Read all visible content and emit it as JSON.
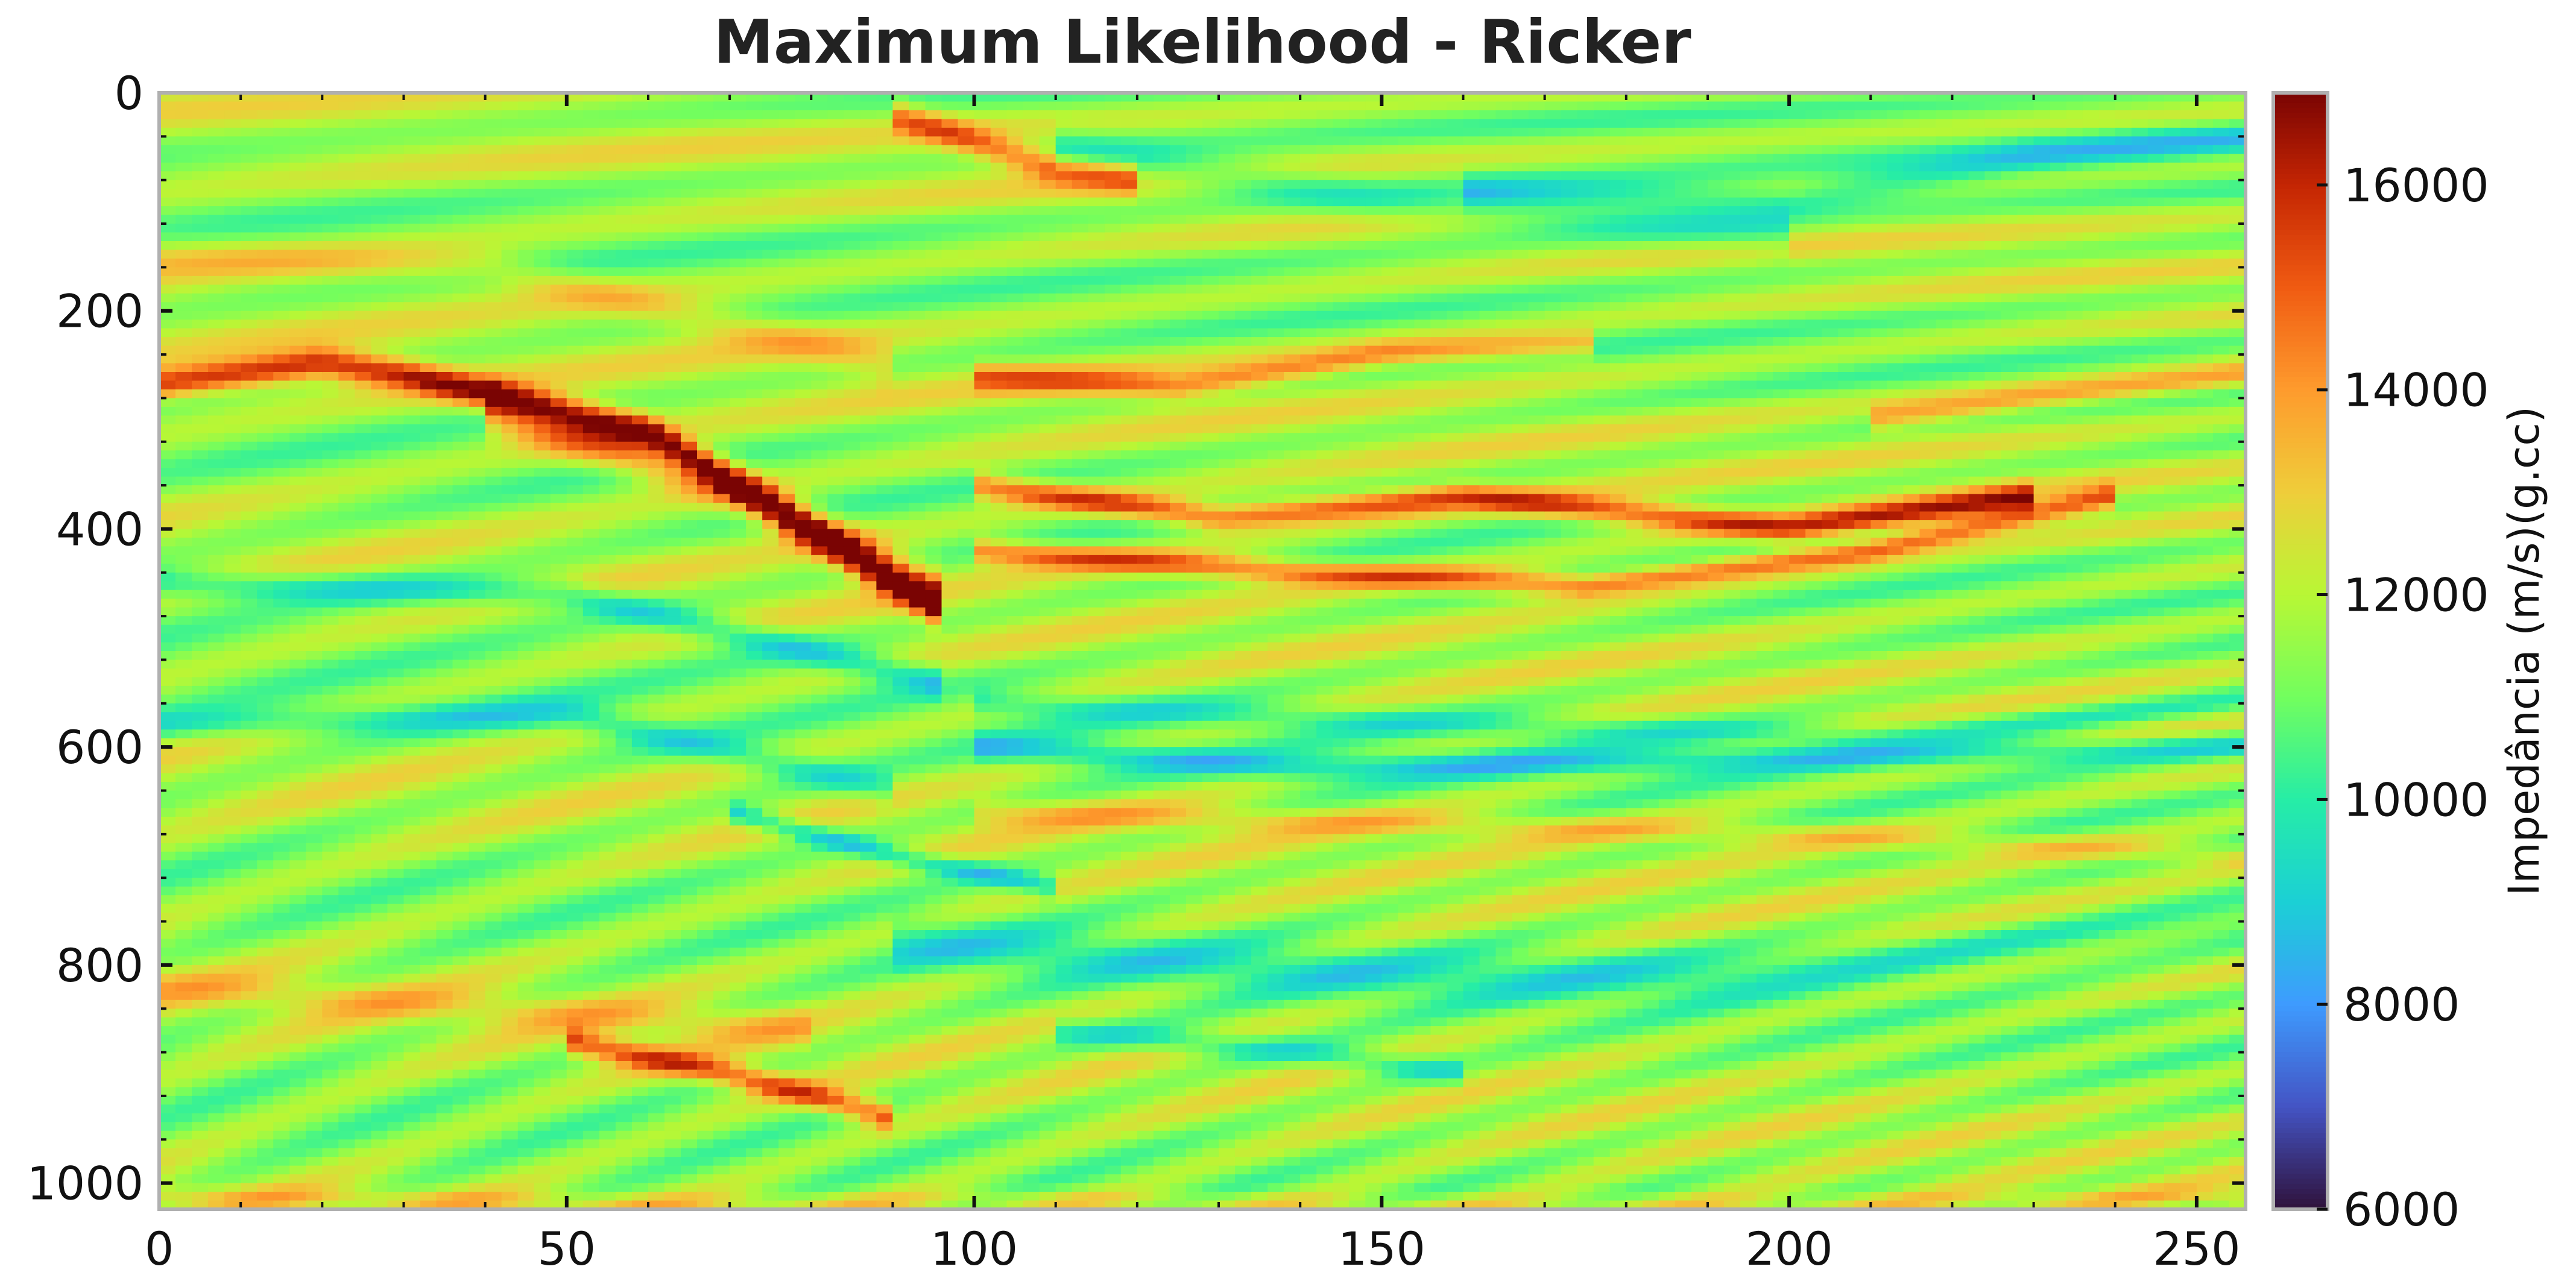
{
  "chart_data": {
    "type": "heatmap",
    "title": "Maximum Likelihood - Ricker",
    "xlabel": "",
    "ylabel": "",
    "xlim": [
      0,
      256
    ],
    "ylim": [
      1024,
      0
    ],
    "x_ticks": [
      0,
      50,
      100,
      150,
      200,
      250
    ],
    "x_tick_labels": [
      "0",
      "50",
      "100",
      "150",
      "200",
      "250"
    ],
    "y_ticks": [
      0,
      200,
      400,
      600,
      800,
      1000
    ],
    "y_tick_labels": [
      "0",
      "200",
      "400",
      "600",
      "800",
      "1000"
    ],
    "colorbar": {
      "label": "Impedância (m/s)(g.cc)",
      "range": [
        6000,
        16900
      ],
      "ticks": [
        6000,
        8000,
        10000,
        12000,
        14000,
        16000
      ],
      "tick_labels": [
        "6000",
        "8000",
        "10000",
        "12000",
        "14000",
        "16000"
      ],
      "colormap": "turbo",
      "stops": [
        {
          "v": 6000,
          "c": "#30123b"
        },
        {
          "v": 7000,
          "c": "#4454c4"
        },
        {
          "v": 8000,
          "c": "#3e9bfe"
        },
        {
          "v": 9000,
          "c": "#1bd0d5"
        },
        {
          "v": 10000,
          "c": "#26eda6"
        },
        {
          "v": 11000,
          "c": "#72fe5e"
        },
        {
          "v": 12000,
          "c": "#b8f735"
        },
        {
          "v": 13000,
          "c": "#efcd3a"
        },
        {
          "v": 14000,
          "c": "#fe9b2d"
        },
        {
          "v": 15000,
          "c": "#f05b12"
        },
        {
          "v": 16000,
          "c": "#c42503"
        },
        {
          "v": 16900,
          "c": "#7a0403"
        }
      ]
    },
    "background_impedance": 11600,
    "horizons": [
      {
        "x": [
          0,
          20,
          30,
          60,
          95
        ],
        "t": [
          268,
          248,
          258,
          310,
          470
        ],
        "amp": 4600,
        "w": 14
      },
      {
        "x": [
          40,
          70,
          95
        ],
        "t": [
          290,
          360,
          460
        ],
        "amp": 3200,
        "w": 22
      },
      {
        "x": [
          100,
          130,
          160,
          200,
          230
        ],
        "t": [
          360,
          390,
          370,
          400,
          370
        ],
        "amp": 4000,
        "w": 12
      },
      {
        "x": [
          100,
          140,
          175,
          210,
          240
        ],
        "t": [
          420,
          440,
          452,
          420,
          370
        ],
        "amp": 3600,
        "w": 11
      },
      {
        "x": [
          100,
          125,
          150,
          175
        ],
        "t": [
          260,
          270,
          240,
          230
        ],
        "amp": 2800,
        "w": 12
      },
      {
        "x": [
          90,
          110,
          120
        ],
        "t": [
          20,
          70,
          80
        ],
        "amp": 3000,
        "w": 14
      },
      {
        "x": [
          0,
          40,
          90
        ],
        "t": [
          150,
          160,
          250
        ],
        "amp": 1400,
        "w": 18
      },
      {
        "x": [
          0,
          50,
          95
        ],
        "t": [
          450,
          460,
          540
        ],
        "amp": -2200,
        "w": 14
      },
      {
        "x": [
          0,
          50,
          90
        ],
        "t": [
          580,
          570,
          640
        ],
        "amp": -1800,
        "w": 14
      },
      {
        "x": [
          100,
          140,
          200,
          256
        ],
        "t": [
          600,
          620,
          610,
          600
        ],
        "amp": -2200,
        "w": 12
      },
      {
        "x": [
          100,
          160,
          210,
          256
        ],
        "t": [
          560,
          580,
          590,
          560
        ],
        "amp": -1500,
        "w": 12
      },
      {
        "x": [
          70,
          90,
          110
        ],
        "t": [
          660,
          700,
          730
        ],
        "amp": -2600,
        "w": 10
      },
      {
        "x": [
          100,
          150,
          200,
          256
        ],
        "t": [
          660,
          670,
          680,
          700
        ],
        "amp": 1500,
        "w": 12
      },
      {
        "x": [
          90,
          150,
          190,
          256
        ],
        "t": [
          780,
          810,
          810,
          760
        ],
        "amp": -1700,
        "w": 22
      },
      {
        "x": [
          110,
          140,
          160
        ],
        "t": [
          860,
          880,
          900
        ],
        "amp": -2000,
        "w": 12
      },
      {
        "x": [
          50,
          70,
          90
        ],
        "t": [
          870,
          900,
          940
        ],
        "amp": 3600,
        "w": 12
      },
      {
        "x": [
          0,
          40,
          80
        ],
        "t": [
          820,
          840,
          860
        ],
        "amp": 1200,
        "w": 16
      },
      {
        "x": [
          110,
          150,
          200
        ],
        "t": [
          50,
          100,
          130
        ],
        "amp": -1600,
        "w": 20
      },
      {
        "x": [
          160,
          200,
          230,
          256
        ],
        "t": [
          90,
          100,
          60,
          40
        ],
        "amp": -2000,
        "w": 16
      },
      {
        "x": [
          210,
          230,
          256
        ],
        "t": [
          300,
          280,
          260
        ],
        "amp": 2400,
        "w": 12
      },
      {
        "x": [
          0,
          30,
          60,
          90,
          100,
          150,
          200,
          256
        ],
        "t": [
          1012,
          1015,
          1020,
          1018,
          1015,
          1020,
          1020,
          1012
        ],
        "amp": 1200,
        "w": 10
      }
    ]
  }
}
